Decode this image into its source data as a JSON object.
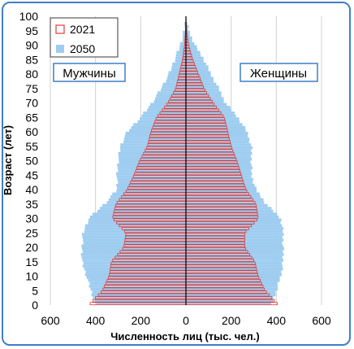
{
  "chart_data": {
    "type": "bar",
    "orientation": "horizontal",
    "title": "",
    "xlabel": "Численность лиц (тыс. чел.)",
    "ylabel": "Возраст (лет)",
    "xlim": [
      -600,
      600
    ],
    "ylim": [
      0,
      100
    ],
    "x_ticks": [
      "600",
      "400",
      "200",
      "0",
      "200",
      "400",
      "600"
    ],
    "y_ticks": [
      "0",
      "5",
      "10",
      "15",
      "20",
      "25",
      "30",
      "35",
      "40",
      "45",
      "50",
      "55",
      "60",
      "65",
      "70",
      "75",
      "80",
      "85",
      "90",
      "95",
      "100"
    ],
    "grid": "vertical",
    "legend_position": "top-left",
    "legend": [
      {
        "label": "2021",
        "style": "outline",
        "color": "#e53935"
      },
      {
        "label": "2050",
        "style": "fill",
        "color": "#9ecdf0"
      }
    ],
    "labels": {
      "left": "Мужчины",
      "right": "Женщины"
    },
    "colors": {
      "s2021": "#e53935",
      "s2050": "#9ecdf0",
      "grid": "#d0d0d0",
      "frame": "#3f7fc7",
      "label_border": "#3f7fc7"
    },
    "age_points": [
      0,
      5,
      10,
      15,
      20,
      25,
      30,
      35,
      40,
      45,
      50,
      55,
      60,
      65,
      70,
      75,
      80,
      85,
      90,
      95,
      100
    ],
    "series": [
      {
        "name": "2021",
        "male": [
          430,
          370,
          340,
          330,
          275,
          265,
          325,
          310,
          260,
          230,
          205,
          170,
          155,
          130,
          80,
          45,
          30,
          15,
          6,
          2,
          0
        ],
        "female": [
          410,
          350,
          320,
          305,
          260,
          260,
          320,
          310,
          265,
          245,
          225,
          200,
          185,
          170,
          120,
          80,
          55,
          30,
          12,
          3,
          0
        ]
      },
      {
        "name": "2050",
        "male": [
          400,
          420,
          440,
          460,
          460,
          455,
          430,
          360,
          305,
          305,
          300,
          290,
          260,
          200,
          150,
          110,
          75,
          50,
          25,
          8,
          0
        ],
        "female": [
          380,
          400,
          420,
          430,
          430,
          430,
          420,
          355,
          310,
          290,
          290,
          290,
          270,
          230,
          175,
          145,
          110,
          80,
          40,
          12,
          0
        ]
      }
    ]
  }
}
